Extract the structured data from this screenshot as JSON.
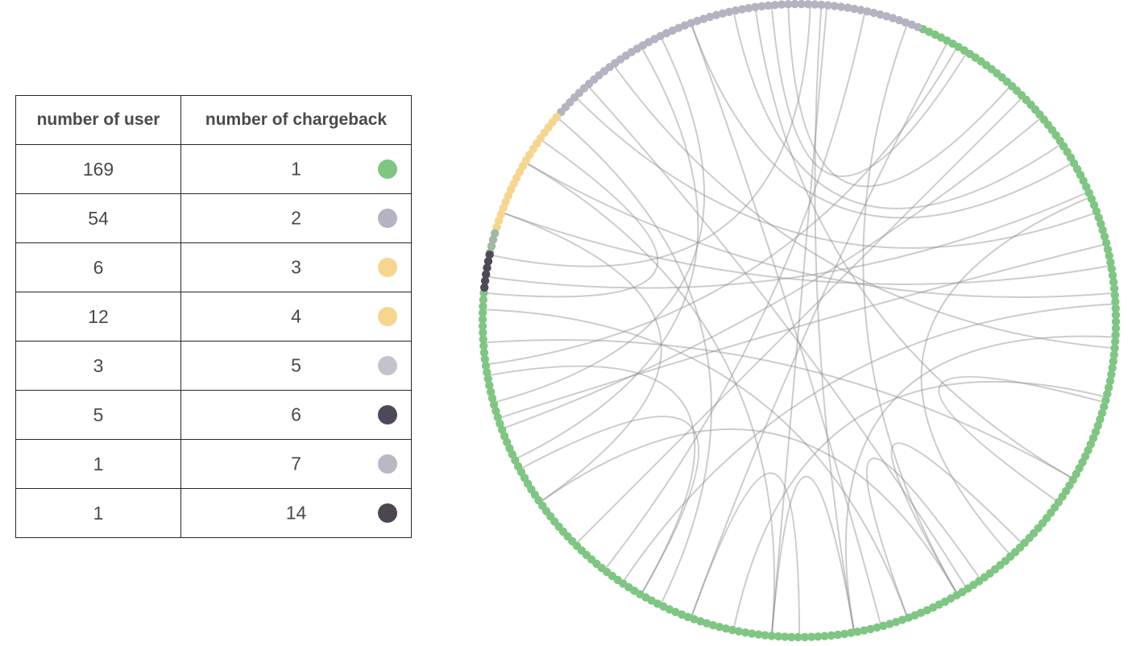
{
  "table": {
    "headers": {
      "users": "number of user",
      "chargeback": "number of chargeback"
    },
    "rows": [
      {
        "users": "169",
        "chargeback": "1",
        "color": "#80c683"
      },
      {
        "users": "54",
        "chargeback": "2",
        "color": "#b5b3c2"
      },
      {
        "users": "6",
        "chargeback": "3",
        "color": "#f8d58e"
      },
      {
        "users": "12",
        "chargeback": "4",
        "color": "#f6d58f"
      },
      {
        "users": "3",
        "chargeback": "5",
        "color": "#c4c3cc"
      },
      {
        "users": "5",
        "chargeback": "6",
        "color": "#4f4858"
      },
      {
        "users": "1",
        "chargeback": "7",
        "color": "#b9b8c3"
      },
      {
        "users": "1",
        "chargeback": "14",
        "color": "#4c4650"
      }
    ]
  },
  "chart_data": {
    "type": "chord",
    "ring_segments": [
      {
        "group": "1",
        "color": "#80c683",
        "from_deg": 175,
        "to_deg": 428
      },
      {
        "group": "2",
        "color": "#b5b3c2",
        "from_deg": 428,
        "to_deg": 500
      },
      {
        "group": "3-4",
        "color": "#f8d58e",
        "from_deg": 500,
        "to_deg": 524
      },
      {
        "group": "5-7",
        "color": "#9fb89f",
        "from_deg": 524,
        "to_deg": 528
      },
      {
        "group": "6/14",
        "color": "#4f4858",
        "from_deg": 528,
        "to_deg": 535
      }
    ],
    "links": [
      [
        116,
        195
      ],
      [
        126,
        355
      ],
      [
        140,
        244
      ],
      [
        132,
        302
      ],
      [
        168,
        88
      ],
      [
        172,
        24
      ],
      [
        150,
        265
      ],
      [
        160,
        215
      ],
      [
        178,
        290
      ],
      [
        184,
        330
      ],
      [
        188,
        60
      ],
      [
        200,
        40
      ],
      [
        206,
        120
      ],
      [
        160,
        10
      ],
      [
        102,
        34
      ],
      [
        62,
        250
      ],
      [
        70,
        300
      ],
      [
        78,
        232
      ],
      [
        86,
        280
      ],
      [
        95,
        58
      ],
      [
        23,
        312
      ],
      [
        3,
        236
      ],
      [
        357,
        280
      ],
      [
        346,
        258
      ],
      [
        14,
        198
      ],
      [
        30,
        110
      ],
      [
        250,
        270
      ],
      [
        300,
        315
      ],
      [
        48,
        92
      ],
      [
        240,
        208
      ],
      [
        290,
        305
      ],
      [
        265,
        280
      ],
      [
        98,
        330
      ],
      [
        135,
        20
      ],
      [
        190,
        240
      ],
      [
        45,
        225
      ],
      [
        110,
        285
      ],
      [
        145,
        175
      ],
      [
        325,
        345
      ],
      [
        215,
        300
      ],
      [
        5,
        150
      ],
      [
        85,
        265
      ]
    ]
  }
}
